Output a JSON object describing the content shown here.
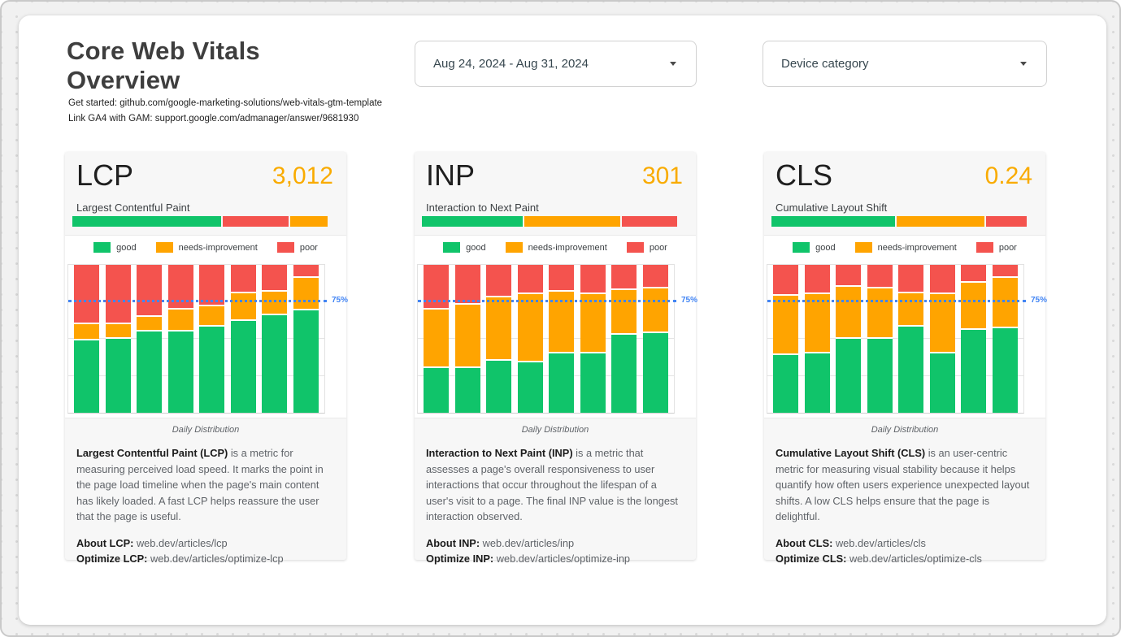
{
  "header": {
    "title": "Core Web Vitals Overview",
    "links": [
      "Get started: github.com/google-marketing-solutions/web-vitals-gtm-template",
      "Link GA4 with GAM: support.google.com/admanager/answer/9681930"
    ]
  },
  "filters": {
    "date_range": {
      "value": "Aug 24, 2024 - Aug 31, 2024"
    },
    "device_category": {
      "value": "Device category"
    }
  },
  "colors": {
    "good": "#10C46A",
    "needs_improvement": "#FFA400",
    "poor": "#F4534E",
    "reference_blue": "#4285F4",
    "metric_value_orange": "#F9AB00"
  },
  "legend": {
    "items": [
      {
        "key": "good",
        "label": "good",
        "color": "#10C46A"
      },
      {
        "key": "needs-improvement",
        "label": "needs-improvement",
        "color": "#FFA400"
      },
      {
        "key": "poor",
        "label": "poor",
        "color": "#F4534E"
      }
    ]
  },
  "cards": [
    {
      "id": "lcp",
      "title": "LCP",
      "value": "3,012",
      "subtitle": "Largest Contentful Paint",
      "summary_bar": [
        {
          "key": "good",
          "pct": 59
        },
        {
          "key": "poor",
          "pct": 26
        },
        {
          "key": "needs-improvement",
          "pct": 15
        }
      ],
      "caption": "Daily Distribution",
      "description_bold": "Largest Contentful Paint (LCP)",
      "description_text": " is a metric for measuring perceived load speed. It marks the point in the page load timeline when the page's main content has likely loaded. A fast LCP helps reassure the user that the page is useful.",
      "about_label": "About LCP:",
      "about_url": "web.dev/articles/lcp",
      "optimize_label": "Optimize LCP:",
      "optimize_url": "web.dev/articles/optimize-lcp"
    },
    {
      "id": "inp",
      "title": "INP",
      "value": "301",
      "subtitle": "Interaction to Next Paint",
      "summary_bar": [
        {
          "key": "good",
          "pct": 40
        },
        {
          "key": "needs-improvement",
          "pct": 38
        },
        {
          "key": "poor",
          "pct": 22
        }
      ],
      "caption": "Daily Distribution",
      "description_bold": "Interaction to Next Paint (INP)",
      "description_text": " is a metric that assesses a page's overall responsiveness to user interactions that occur throughout the lifespan of a user's visit to a page. The final INP value is the longest interaction observed.",
      "about_label": "About INP:",
      "about_url": "web.dev/articles/inp",
      "optimize_label": "Optimize INP:",
      "optimize_url": "web.dev/articles/optimize-inp"
    },
    {
      "id": "cls",
      "title": "CLS",
      "value": "0.24",
      "subtitle": "Cumulative Layout Shift",
      "summary_bar": [
        {
          "key": "good",
          "pct": 49
        },
        {
          "key": "needs-improvement",
          "pct": 35
        },
        {
          "key": "poor",
          "pct": 16
        }
      ],
      "caption": "Daily Distribution",
      "description_bold": "Cumulative Layout Shift (CLS)",
      "description_text": " is an user-centric metric for measuring visual stability because it helps quantify how often users experience unexpected layout shifts. A low CLS helps ensure that the page is delightful.",
      "about_label": "About CLS:",
      "about_url": "web.dev/articles/cls",
      "optimize_label": "Optimize CLS:",
      "optimize_url": "web.dev/articles/optimize-cls"
    }
  ],
  "chart_data": [
    {
      "type": "bar",
      "stacked": true,
      "metric": "LCP",
      "title": "Daily Distribution",
      "bars": 8,
      "ylim": [
        0,
        100
      ],
      "unit": "%",
      "grid": true,
      "gridlines": [
        25,
        50
      ],
      "legend_position": "top",
      "reference_line": {
        "y": 75,
        "label": "75%"
      },
      "series": [
        {
          "name": "good",
          "values": [
            49,
            50,
            55,
            55,
            58,
            62,
            66,
            69
          ]
        },
        {
          "name": "needs-improvement",
          "values": [
            11,
            10,
            10,
            15,
            14,
            19,
            16,
            22
          ]
        },
        {
          "name": "poor",
          "values": [
            40,
            40,
            35,
            30,
            28,
            19,
            18,
            9
          ]
        }
      ]
    },
    {
      "type": "bar",
      "stacked": true,
      "metric": "INP",
      "title": "Daily Distribution",
      "bars": 8,
      "ylim": [
        0,
        100
      ],
      "unit": "%",
      "grid": true,
      "gridlines": [
        25,
        50
      ],
      "legend_position": "top",
      "reference_line": {
        "y": 75,
        "label": "75%"
      },
      "series": [
        {
          "name": "good",
          "values": [
            30,
            30,
            35,
            34,
            40,
            40,
            53,
            54
          ]
        },
        {
          "name": "needs-improvement",
          "values": [
            40,
            43,
            43,
            46,
            42,
            40,
            30,
            30
          ]
        },
        {
          "name": "poor",
          "values": [
            30,
            27,
            22,
            20,
            18,
            20,
            17,
            16
          ]
        }
      ]
    },
    {
      "type": "bar",
      "stacked": true,
      "metric": "CLS",
      "title": "Daily Distribution",
      "bars": 8,
      "ylim": [
        0,
        100
      ],
      "unit": "%",
      "grid": true,
      "gridlines": [
        25,
        50
      ],
      "legend_position": "top",
      "reference_line": {
        "y": 75,
        "label": "75%"
      },
      "series": [
        {
          "name": "good",
          "values": [
            39,
            40,
            50,
            50,
            58,
            40,
            56,
            57
          ]
        },
        {
          "name": "needs-improvement",
          "values": [
            40,
            40,
            35,
            34,
            23,
            40,
            32,
            34
          ]
        },
        {
          "name": "poor",
          "values": [
            21,
            20,
            15,
            16,
            19,
            20,
            12,
            9
          ]
        }
      ]
    }
  ]
}
